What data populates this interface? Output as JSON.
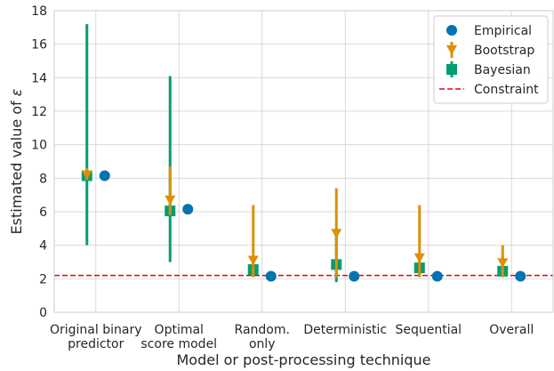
{
  "chart_data": {
    "type": "scatter",
    "title": "",
    "xlabel": "Model or post-processing technique",
    "ylabel_prefix": "Estimated value of ",
    "ylabel_symbol": "ε",
    "ylim": [
      0,
      18
    ],
    "yticks": [
      "0",
      "2",
      "4",
      "6",
      "8",
      "10",
      "12",
      "14",
      "16",
      "18"
    ],
    "grid": true,
    "legend_position": "top-right",
    "categories": [
      [
        "Original binary",
        "predictor"
      ],
      [
        "Optimal",
        "score model"
      ],
      [
        "Random.",
        "only"
      ],
      [
        "Deterministic"
      ],
      [
        "Sequential"
      ],
      [
        "Overall"
      ]
    ],
    "series": [
      {
        "name": "Empirical",
        "color": "#0173b2",
        "marker": "circle",
        "values": [
          8.15,
          6.15,
          2.15,
          2.15,
          2.15,
          2.15
        ]
      },
      {
        "name": "Bootstrap",
        "color": "#de8f05",
        "marker": "triangle-down",
        "values": [
          8.2,
          6.7,
          3.1,
          4.7,
          3.25,
          2.95
        ],
        "lower": [
          7.9,
          5.8,
          2.1,
          2.1,
          2.1,
          2.1
        ],
        "upper": [
          8.6,
          8.7,
          6.4,
          7.4,
          6.4,
          4.0
        ]
      },
      {
        "name": "Bayesian",
        "color": "#029e73",
        "marker": "square",
        "values": [
          8.15,
          6.05,
          2.55,
          2.85,
          2.65,
          2.45
        ],
        "lower": [
          4.0,
          3.0,
          2.1,
          1.8,
          2.1,
          2.1
        ],
        "upper": [
          17.2,
          14.1,
          3.0,
          5.0,
          3.4,
          3.3
        ]
      }
    ],
    "constraint": {
      "name": "Constraint",
      "value": 2.2,
      "color": "#e8000b",
      "style": "dashed"
    }
  }
}
